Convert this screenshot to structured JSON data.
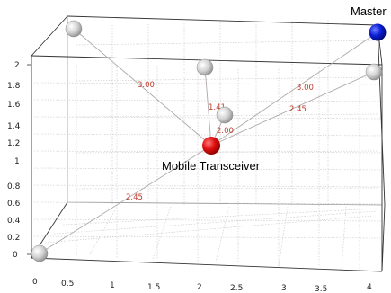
{
  "y_ticks": [
    "0",
    "0.2",
    "0.4",
    "0.6",
    "0.8",
    "1",
    "1.2",
    "1.4",
    "1.6",
    "1.8",
    "2"
  ],
  "x_ticks": [
    "0",
    "0.5",
    "1",
    "1.5",
    "2",
    "2.5",
    "3",
    "3.5",
    "4"
  ],
  "nodes": {
    "master": {
      "label": "Master",
      "color": "#0a1fd6"
    },
    "mobile": {
      "label": "Mobile Transceiver",
      "color": "#e01010"
    },
    "anchor_color": "#d0d0d0"
  },
  "distances": [
    "3.00",
    "1.41",
    "2.00",
    "3.00",
    "2.45",
    "2.45"
  ]
}
